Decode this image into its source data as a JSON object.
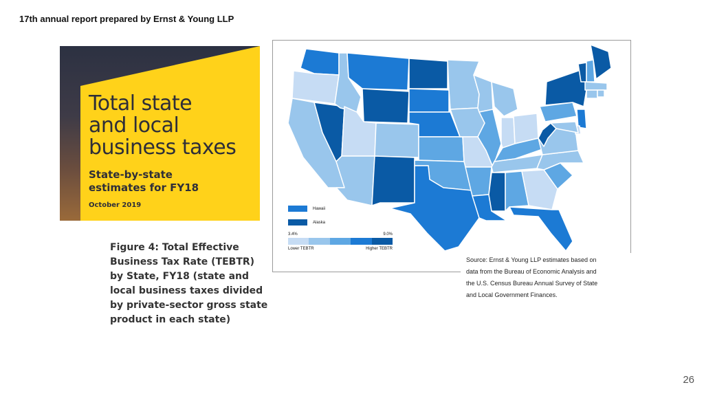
{
  "header": {
    "note": "17th annual report prepared by Ernst & Young LLP"
  },
  "cover": {
    "title_lines": [
      "Total state",
      "and local",
      "business taxes"
    ],
    "subtitle_lines": [
      "State-by-state",
      "estimates for FY18"
    ],
    "date": "October 2019",
    "colors": {
      "yellow": "#ffd21a",
      "text": "#2e2e38"
    }
  },
  "caption": {
    "lines": [
      "Figure 4: Total Effective",
      "Business Tax Rate (TEBTR)",
      "by State, FY18 (state and",
      "local business taxes divided",
      "by private-sector gross state",
      "product in each state)"
    ]
  },
  "map": {
    "legend": {
      "hawaii_label": "Hawaii",
      "alaska_label": "Alaska",
      "scale_min": "3.4%",
      "scale_max": "9.0%",
      "lower_label": "Lower TEBTR",
      "higher_label": "Higher TEBTR"
    },
    "palette": [
      "#c6dcf4",
      "#99c6ec",
      "#5ea7e3",
      "#1c7ad4",
      "#0a5aa5"
    ],
    "state_tiers": {
      "WA": 3,
      "OR": 0,
      "CA": 1,
      "NV": 4,
      "ID": 1,
      "MT": 3,
      "WY": 4,
      "UT": 0,
      "AZ": 1,
      "CO": 1,
      "NM": 4,
      "ND": 4,
      "SD": 3,
      "NE": 3,
      "KS": 2,
      "OK": 2,
      "TX": 3,
      "MN": 1,
      "IA": 1,
      "MO": 0,
      "AR": 2,
      "LA": 3,
      "WI": 1,
      "IL": 2,
      "MI": 1,
      "IN": 0,
      "OH": 0,
      "KY": 2,
      "TN": 1,
      "MS": 4,
      "AL": 2,
      "GA": 0,
      "FL": 3,
      "SC": 2,
      "NC": 1,
      "VA": 1,
      "WV": 4,
      "PA": 2,
      "NY": 4,
      "VT": 4,
      "NH": 2,
      "ME": 4,
      "MA": 1,
      "CT": 1,
      "RI": 1,
      "NJ": 3,
      "DE": 0,
      "MD": 1
    }
  },
  "source": {
    "lines": [
      "Source: Ernst & Young LLP estimates based on",
      "data from the Bureau of Economic Analysis and",
      "the U.S. Census Bureau Annual Survey of State",
      "and Local Government Finances."
    ]
  },
  "page_number": "26"
}
